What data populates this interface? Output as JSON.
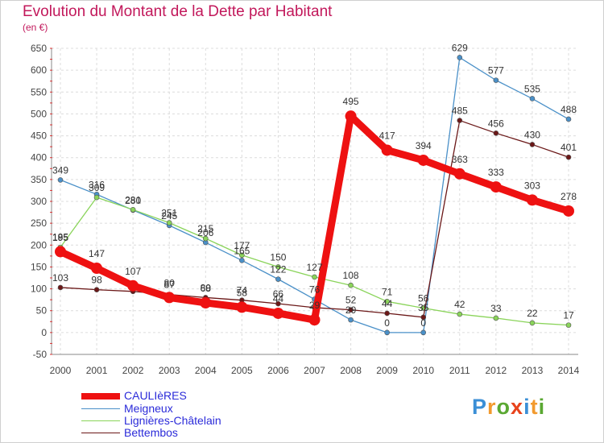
{
  "title": "Evolution du Montant de la Dette par Habitant",
  "unit": "(en €)",
  "logo": {
    "text": "Proxiti",
    "colors": [
      "#3b8fd6",
      "#f29a2e",
      "#5aa832",
      "#e8431c",
      "#3b8fd6",
      "#f29a2e",
      "#5aa832"
    ]
  },
  "chart_data": {
    "type": "line",
    "title": "Evolution du Montant de la Dette par Habitant",
    "ylabel": "(en €)",
    "xlabel": "",
    "x": [
      "2000",
      "2001",
      "2002",
      "2003",
      "2004",
      "2005",
      "2006",
      "2007",
      "2008",
      "2009",
      "2010",
      "2011",
      "2012",
      "2013",
      "2014"
    ],
    "ylim": [
      -50,
      650
    ],
    "yticks": [
      -50,
      0,
      50,
      100,
      150,
      200,
      250,
      300,
      350,
      400,
      450,
      500,
      550,
      600,
      650
    ],
    "grid": true,
    "legend_position": "bottom-left",
    "series": [
      {
        "name": "CAULIèRES",
        "color": "#ee1111",
        "values": [
          185,
          147,
          107,
          80,
          68,
          58,
          44,
          29,
          495,
          417,
          394,
          363,
          333,
          303,
          278
        ],
        "labels": [
          "185",
          "147",
          "107",
          "80",
          "68",
          "58",
          "44",
          "29",
          "495",
          "417",
          "394",
          "363",
          "333",
          "303",
          "278"
        ]
      },
      {
        "name": "Meigneux",
        "color": "#4a90c8",
        "values": [
          349,
          316,
          280,
          245,
          206,
          165,
          122,
          76,
          29,
          0,
          0,
          629,
          577,
          535,
          488
        ],
        "labels": [
          "349",
          "316",
          "280",
          "245",
          "206",
          "165",
          "122",
          "76",
          "29",
          "0",
          "0",
          "629",
          "577",
          "535",
          "488"
        ]
      },
      {
        "name": "Lignières-Châtelain",
        "color": "#8ad45a",
        "values": [
          195,
          309,
          281,
          251,
          215,
          177,
          150,
          127,
          108,
          71,
          56,
          42,
          33,
          22,
          17
        ],
        "labels": [
          "195",
          "309",
          "281",
          "251",
          "215",
          "177",
          "150",
          "127",
          "108",
          "71",
          "56",
          "42",
          "33",
          "22",
          "17"
        ]
      },
      {
        "name": "Bettembos",
        "color": "#6b1818",
        "values": [
          103,
          98,
          94,
          87,
          80,
          74,
          66,
          57,
          52,
          44,
          35,
          485,
          456,
          430,
          401
        ],
        "labels": [
          "103",
          "98",
          "",
          "87",
          "80",
          "74",
          "66",
          "",
          "52",
          "44",
          "35",
          "485",
          "456",
          "430",
          "401"
        ]
      }
    ]
  }
}
